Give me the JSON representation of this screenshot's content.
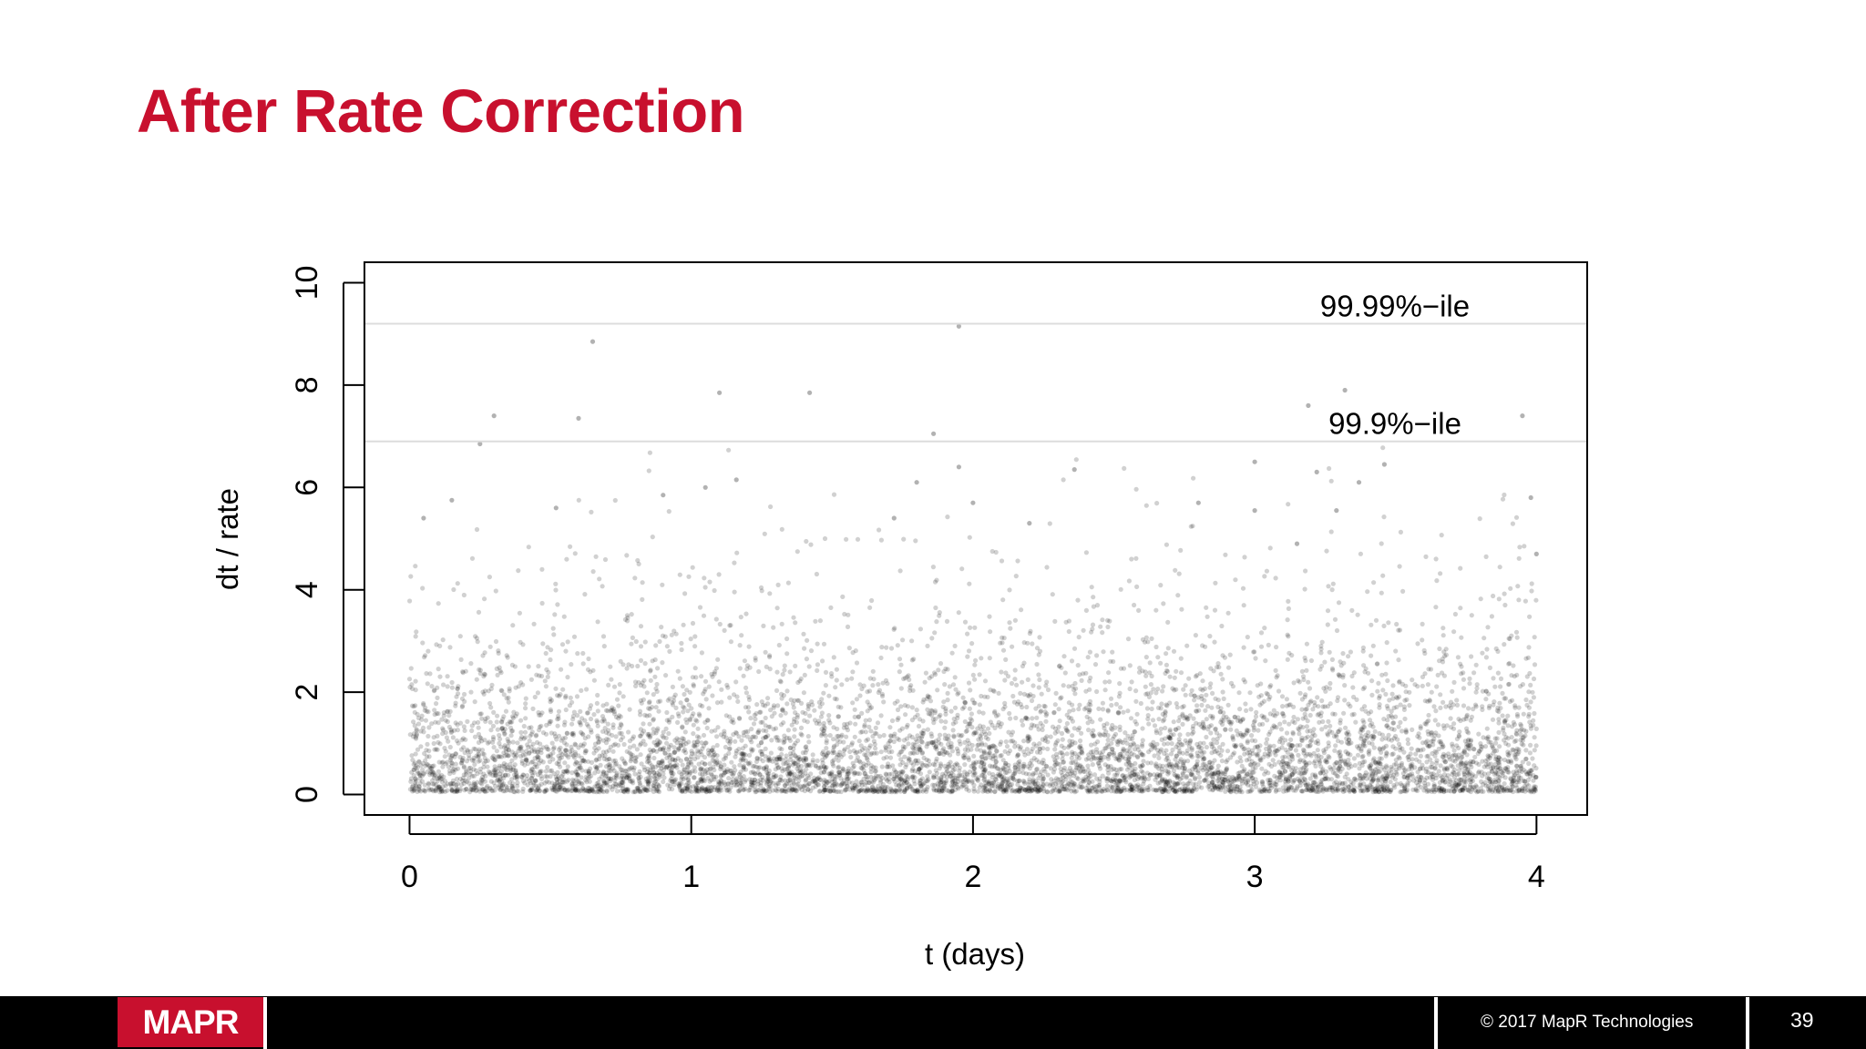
{
  "slide": {
    "title": "After Rate Correction",
    "copyright": "© 2017 MapR Technologies",
    "page_number": "39",
    "logo_text": "MAPR",
    "colors": {
      "title": "#c8102e",
      "footer": "#000000",
      "logo": "#c8102e"
    }
  },
  "chart_data": {
    "type": "scatter",
    "title": "",
    "xlabel": "t (days)",
    "ylabel": "dt / rate",
    "xlim": [
      -0.16,
      4.18
    ],
    "ylim": [
      -0.4,
      10.4
    ],
    "x_ticks": [
      0,
      1,
      2,
      3,
      4
    ],
    "x_tick_labels": [
      "0",
      "1",
      "2",
      "3",
      "4"
    ],
    "y_ticks": [
      0,
      2,
      4,
      6,
      8,
      10
    ],
    "y_tick_labels": [
      "0",
      "2",
      "4",
      "6",
      "8",
      "10"
    ],
    "grid": false,
    "point_color": "#000000",
    "point_alpha": 0.18,
    "reference_lines": [
      {
        "label": "99.99%−ile",
        "y": 9.2
      },
      {
        "label": "99.9%−ile",
        "y": 6.9
      }
    ],
    "highlighted_points": [
      {
        "x": 0.65,
        "y": 8.85
      },
      {
        "x": 1.95,
        "y": 9.15
      },
      {
        "x": 1.1,
        "y": 7.85
      },
      {
        "x": 1.42,
        "y": 7.85
      },
      {
        "x": 3.32,
        "y": 7.9
      },
      {
        "x": 3.19,
        "y": 7.6
      },
      {
        "x": 0.3,
        "y": 7.4
      },
      {
        "x": 0.6,
        "y": 7.35
      },
      {
        "x": 3.95,
        "y": 7.4
      },
      {
        "x": 1.86,
        "y": 7.05
      },
      {
        "x": 0.25,
        "y": 6.85
      },
      {
        "x": 3.0,
        "y": 6.5
      },
      {
        "x": 3.46,
        "y": 6.45
      },
      {
        "x": 1.95,
        "y": 6.4
      },
      {
        "x": 2.36,
        "y": 6.35
      },
      {
        "x": 1.16,
        "y": 6.15
      },
      {
        "x": 1.8,
        "y": 6.1
      },
      {
        "x": 3.22,
        "y": 6.3
      },
      {
        "x": 3.37,
        "y": 6.1
      },
      {
        "x": 1.05,
        "y": 6.0
      },
      {
        "x": 0.9,
        "y": 5.85
      },
      {
        "x": 0.15,
        "y": 5.75
      },
      {
        "x": 3.98,
        "y": 5.8
      },
      {
        "x": 3.29,
        "y": 5.55
      },
      {
        "x": 0.52,
        "y": 5.6
      },
      {
        "x": 0.05,
        "y": 5.4
      },
      {
        "x": 2.2,
        "y": 5.3
      },
      {
        "x": 1.72,
        "y": 5.4
      },
      {
        "x": 2.0,
        "y": 5.7
      },
      {
        "x": 2.8,
        "y": 5.7
      },
      {
        "x": 3.0,
        "y": 5.55
      },
      {
        "x": 3.15,
        "y": 4.9
      },
      {
        "x": 4.0,
        "y": 4.7
      }
    ],
    "random_points": {
      "count": 7000,
      "seed": 17,
      "x_range": [
        0,
        4
      ],
      "distribution": "exponential",
      "mean": 1.0
    }
  }
}
